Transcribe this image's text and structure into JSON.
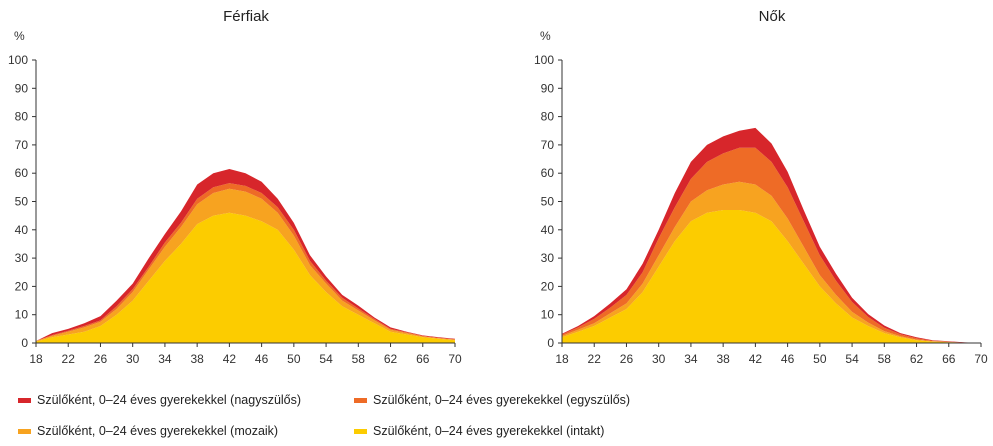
{
  "colors": {
    "nagyszulos": "#d7262b",
    "egyszulos": "#ee6b26",
    "mozaik": "#f7a320",
    "intakt": "#fccc00"
  },
  "legend": [
    {
      "key": "nagyszulos",
      "label": "Szülőként, 0–24 éves gyerekekkel (nagyszülős)"
    },
    {
      "key": "egyszulos",
      "label": "Szülőként, 0–24 éves gyerekekkel (egyszülős)"
    },
    {
      "key": "mozaik",
      "label": "Szülőként, 0–24 éves gyerekekkel (mozaik)"
    },
    {
      "key": "intakt",
      "label": "Szülőként, 0–24 éves gyerekekkel (intakt)"
    }
  ],
  "chart_data": [
    {
      "type": "area",
      "stacked": true,
      "title": "Férfiak",
      "ylabel": "%",
      "xlim": [
        18,
        70
      ],
      "ylim": [
        0,
        100
      ],
      "x_ticks": [
        18,
        22,
        26,
        30,
        34,
        38,
        42,
        46,
        50,
        54,
        58,
        62,
        66,
        70
      ],
      "y_ticks": [
        0,
        10,
        20,
        30,
        40,
        50,
        60,
        70,
        80,
        90,
        100
      ],
      "x": [
        18,
        20,
        22,
        24,
        26,
        28,
        30,
        32,
        34,
        36,
        38,
        40,
        42,
        44,
        46,
        48,
        50,
        52,
        54,
        56,
        58,
        60,
        62,
        64,
        66,
        68,
        70
      ],
      "series": [
        {
          "name": "Szülőként, 0–24 éves gyerekekkel (intakt)",
          "key": "intakt",
          "values": [
            0.5,
            2,
            3,
            4,
            6,
            10,
            15,
            22,
            29,
            35,
            42,
            45,
            46,
            45,
            43,
            40,
            33,
            24,
            18,
            13,
            10,
            7,
            4,
            3,
            2,
            1.5,
            1
          ]
        },
        {
          "name": "Szülőként, 0–24 éves gyerekekkel (mozaik)",
          "key": "mozaik",
          "values": [
            0.2,
            0.5,
            1,
            1.5,
            1.5,
            2,
            3,
            4,
            5,
            6,
            7,
            8,
            8.5,
            8.5,
            8,
            6,
            5,
            3.5,
            3,
            2,
            1.5,
            1,
            0.7,
            0.5,
            0.3,
            0.2,
            0.2
          ]
        },
        {
          "name": "Szülőként, 0–24 éves gyerekekkel (egyszülős)",
          "key": "egyszulos",
          "values": [
            0,
            0.3,
            0.3,
            0.5,
            0.5,
            1,
            1,
            1,
            1.5,
            1.5,
            2,
            2,
            2,
            2,
            2,
            2,
            2,
            1.5,
            1,
            1,
            0.7,
            0.5,
            0.3,
            0.3,
            0.2,
            0.1,
            0.1
          ]
        },
        {
          "name": "Szülőként, 0–24 éves gyerekekkel (nagyszülős)",
          "key": "nagyszulos",
          "values": [
            0,
            0.7,
            0.7,
            1,
            1.5,
            2,
            2,
            3,
            3,
            4,
            5,
            5,
            5,
            4.5,
            4,
            3,
            2.5,
            2,
            1.5,
            1,
            1,
            0.5,
            0.5,
            0.2,
            0.2,
            0.2,
            0.2
          ]
        }
      ]
    },
    {
      "type": "area",
      "stacked": true,
      "title": "Nők",
      "ylabel": "%",
      "xlim": [
        18,
        70
      ],
      "ylim": [
        0,
        100
      ],
      "x_ticks": [
        18,
        22,
        26,
        30,
        34,
        38,
        42,
        46,
        50,
        54,
        58,
        62,
        66,
        70
      ],
      "y_ticks": [
        0,
        10,
        20,
        30,
        40,
        50,
        60,
        70,
        80,
        90,
        100
      ],
      "x": [
        18,
        20,
        22,
        24,
        26,
        28,
        30,
        32,
        34,
        36,
        38,
        40,
        42,
        44,
        46,
        48,
        50,
        52,
        54,
        56,
        58,
        60,
        62,
        64,
        66,
        68,
        70
      ],
      "series": [
        {
          "name": "Szülőként, 0–24 éves gyerekekkel (intakt)",
          "key": "intakt",
          "values": [
            2,
            4,
            6,
            9,
            12,
            18,
            27,
            36,
            43,
            46,
            47,
            47,
            46,
            43,
            36,
            28,
            20,
            14,
            9,
            6,
            3.5,
            2,
            1,
            0.5,
            0.3,
            0.1,
            0
          ]
        },
        {
          "name": "Szülőként, 0–24 éves gyerekekkel (mozaik)",
          "key": "mozaik",
          "values": [
            0.5,
            0.7,
            1,
            1.5,
            2,
            3,
            4,
            5,
            7,
            8,
            9,
            10,
            10,
            9,
            8,
            6,
            4,
            3,
            2,
            1.2,
            0.7,
            0.4,
            0.2,
            0.1,
            0.1,
            0,
            0
          ]
        },
        {
          "name": "Szülőként, 0–24 éves gyerekekkel (egyszülős)",
          "key": "egyszulos",
          "values": [
            0.5,
            0.8,
            1.5,
            2,
            3,
            4,
            6,
            7,
            8,
            10,
            11,
            12,
            13,
            12,
            11,
            9,
            7,
            5,
            3.5,
            2,
            1.2,
            0.7,
            0.5,
            0.2,
            0.1,
            0,
            0
          ]
        },
        {
          "name": "Szülőként, 0–24 éves gyerekekkel (nagyszülős)",
          "key": "nagyszulos",
          "values": [
            0.3,
            0.5,
            1,
            1.5,
            2,
            3,
            3,
            5,
            6,
            6,
            6,
            6,
            7,
            6.5,
            5.5,
            4,
            3,
            2.5,
            1.5,
            1,
            0.8,
            0.4,
            0.3,
            0.2,
            0.1,
            0.1,
            0
          ]
        }
      ]
    }
  ]
}
